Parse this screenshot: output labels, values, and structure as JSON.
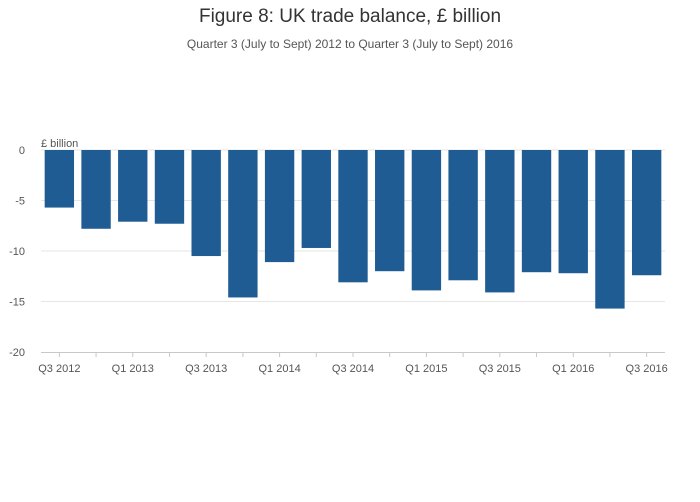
{
  "chart_data": {
    "type": "bar",
    "title": "Figure 8: UK trade balance, £ billion",
    "subtitle": "Quarter 3 (July to Sept) 2012 to Quarter 3 (July to Sept) 2016",
    "ylabel": "£ billion",
    "xlabel": "",
    "ylim": [
      -20,
      0
    ],
    "yticks": [
      0,
      -5,
      -10,
      -15,
      -20
    ],
    "grid": true,
    "bar_color": "#1f5c94",
    "categories": [
      "Q3 2012",
      "Q4 2012",
      "Q1 2013",
      "Q2 2013",
      "Q3 2013",
      "Q4 2013",
      "Q1 2014",
      "Q2 2014",
      "Q3 2014",
      "Q4 2014",
      "Q1 2015",
      "Q2 2015",
      "Q3 2015",
      "Q4 2015",
      "Q1 2016",
      "Q2 2016",
      "Q3 2016"
    ],
    "xtick_labels": [
      "Q3 2012",
      "",
      "Q1 2013",
      "",
      "Q3 2013",
      "",
      "Q1 2014",
      "",
      "Q3 2014",
      "",
      "Q1 2015",
      "",
      "Q3 2015",
      "",
      "Q1 2016",
      "",
      "Q3 2016"
    ],
    "values": [
      -5.7,
      -7.8,
      -7.1,
      -7.3,
      -10.5,
      -14.6,
      -11.1,
      -9.7,
      -13.1,
      -12.0,
      -13.9,
      -12.9,
      -14.1,
      -12.1,
      -12.2,
      -15.7,
      -12.4
    ]
  }
}
